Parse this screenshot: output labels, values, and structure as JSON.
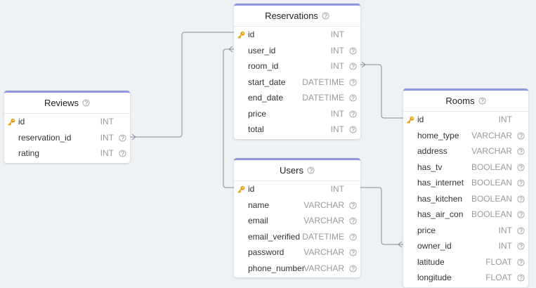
{
  "tables": [
    {
      "name": "Reservations",
      "fields": [
        {
          "name": "id",
          "type": "INT",
          "primary_key": true
        },
        {
          "name": "user_id",
          "type": "INT",
          "primary_key": false
        },
        {
          "name": "room_id",
          "type": "INT",
          "primary_key": false
        },
        {
          "name": "start_date",
          "type": "DATETIME",
          "primary_key": false
        },
        {
          "name": "end_date",
          "type": "DATETIME",
          "primary_key": false
        },
        {
          "name": "price",
          "type": "INT",
          "primary_key": false
        },
        {
          "name": "total",
          "type": "INT",
          "primary_key": false
        }
      ]
    },
    {
      "name": "Reviews",
      "fields": [
        {
          "name": "id",
          "type": "INT",
          "primary_key": true
        },
        {
          "name": "reservation_id",
          "type": "INT",
          "primary_key": false
        },
        {
          "name": "rating",
          "type": "INT",
          "primary_key": false
        }
      ]
    },
    {
      "name": "Users",
      "fields": [
        {
          "name": "id",
          "type": "INT",
          "primary_key": true
        },
        {
          "name": "name",
          "type": "VARCHAR",
          "primary_key": false
        },
        {
          "name": "email",
          "type": "VARCHAR",
          "primary_key": false
        },
        {
          "name": "email_verified",
          "type": "DATETIME",
          "primary_key": false
        },
        {
          "name": "password",
          "type": "VARCHAR",
          "primary_key": false
        },
        {
          "name": "phone_number",
          "type": "VARCHAR",
          "primary_key": false
        }
      ]
    },
    {
      "name": "Rooms",
      "fields": [
        {
          "name": "id",
          "type": "INT",
          "primary_key": true
        },
        {
          "name": "home_type",
          "type": "VARCHAR",
          "primary_key": false
        },
        {
          "name": "address",
          "type": "VARCHAR",
          "primary_key": false
        },
        {
          "name": "has_tv",
          "type": "BOOLEAN",
          "primary_key": false
        },
        {
          "name": "has_internet",
          "type": "BOOLEAN",
          "primary_key": false
        },
        {
          "name": "has_kitchen",
          "type": "BOOLEAN",
          "primary_key": false
        },
        {
          "name": "has_air_con",
          "type": "BOOLEAN",
          "primary_key": false
        },
        {
          "name": "price",
          "type": "INT",
          "primary_key": false
        },
        {
          "name": "owner_id",
          "type": "INT",
          "primary_key": false
        },
        {
          "name": "latitude",
          "type": "FLOAT",
          "primary_key": false
        },
        {
          "name": "longitude",
          "type": "FLOAT",
          "primary_key": false
        }
      ]
    }
  ]
}
